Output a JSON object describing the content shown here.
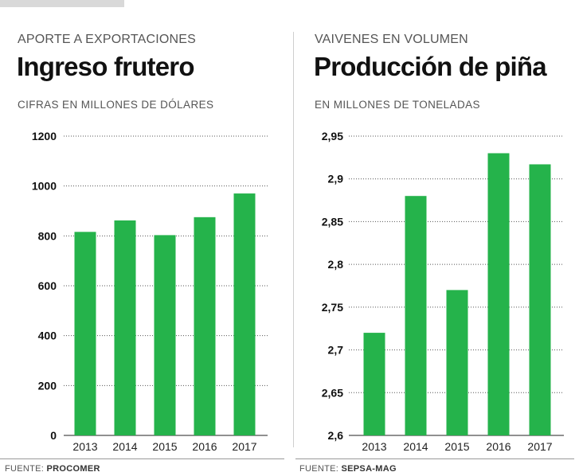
{
  "left": {
    "kicker": "APORTE A EXPORTACIONES",
    "headline": "Ingreso frutero",
    "units": "CIFRAS EN MILLONES DE DÓLARES",
    "source_prefix": "FUENTE: ",
    "source_name": "PROCOMER"
  },
  "right": {
    "kicker": "VAIVENES EN VOLUMEN",
    "headline": "Producción de piña",
    "units": "EN MILLONES DE TONELADAS",
    "source_prefix": "FUENTE: ",
    "source_name": "SEPSA-MAG"
  },
  "colors": {
    "bar": "#25b34b",
    "grid": "#555555"
  },
  "chart_data": [
    {
      "type": "bar",
      "title": "Ingreso frutero",
      "ylabel": "Millones de dólares",
      "categories": [
        "2013",
        "2014",
        "2015",
        "2016",
        "2017"
      ],
      "values": [
        816,
        862,
        803,
        875,
        970
      ],
      "ylim": [
        0,
        1200
      ],
      "yticks": [
        0,
        200,
        400,
        600,
        800,
        1000,
        1200
      ],
      "ytick_labels": [
        "0",
        "200",
        "400",
        "600",
        "800",
        "1000",
        "1200"
      ],
      "grid": true
    },
    {
      "type": "bar",
      "title": "Producción de piña",
      "ylabel": "Millones de toneladas",
      "categories": [
        "2013",
        "2014",
        "2015",
        "2016",
        "2017"
      ],
      "values": [
        2.72,
        2.88,
        2.77,
        2.93,
        2.917
      ],
      "ylim": [
        2.6,
        2.95
      ],
      "yticks": [
        2.6,
        2.65,
        2.7,
        2.75,
        2.8,
        2.85,
        2.9,
        2.95
      ],
      "ytick_labels": [
        "2,6",
        "2,65",
        "2,7",
        "2,75",
        "2,8",
        "2,85",
        "2,9",
        "2,95"
      ],
      "grid": true
    }
  ]
}
